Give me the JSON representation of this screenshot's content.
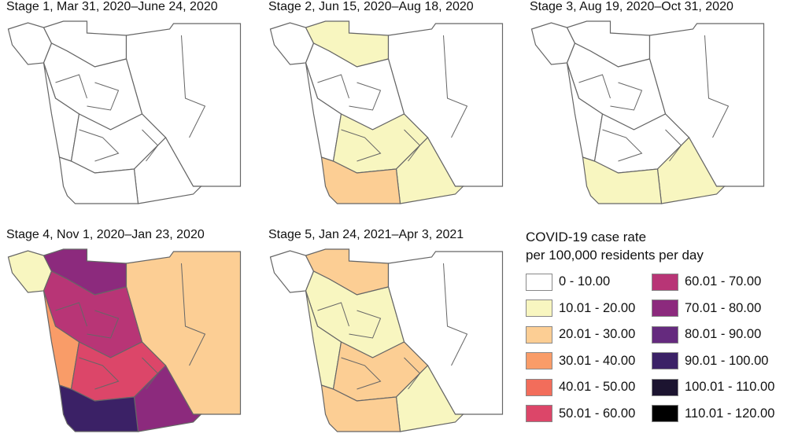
{
  "bins": [
    {
      "label": "0 - 10.00",
      "color": "#ffffff"
    },
    {
      "label": "10.01 - 20.00",
      "color": "#f8f6c0"
    },
    {
      "label": "20.01 - 30.00",
      "color": "#fcce94"
    },
    {
      "label": "30.01 - 40.00",
      "color": "#f99c68"
    },
    {
      "label": "40.01 - 50.00",
      "color": "#f26d5b"
    },
    {
      "label": "50.01 - 60.00",
      "color": "#dc4669"
    },
    {
      "label": "60.01 - 70.00",
      "color": "#b83576"
    },
    {
      "label": "70.01 - 80.00",
      "color": "#8c2a7d"
    },
    {
      "label": "80.01 - 90.00",
      "color": "#652a7e"
    },
    {
      "label": "90.01 - 100.00",
      "color": "#3b2166"
    },
    {
      "label": "100.01 - 110.00",
      "color": "#1c1430"
    },
    {
      "label": "110.01 - 120.00",
      "color": "#000000"
    }
  ],
  "legend": {
    "title_line1": "COVID-19 case rate",
    "title_line2": "per 100,000 residents per day"
  },
  "panels": [
    {
      "title": "Stage 1, Mar 31, 2020–June 24, 2020",
      "region_bins": [
        0,
        0,
        0,
        0,
        0,
        0,
        0,
        0
      ]
    },
    {
      "title": "Stage 2, Jun 15, 2020–Aug 18, 2020",
      "region_bins": [
        0,
        1,
        0,
        0,
        0,
        1,
        1,
        2
      ]
    },
    {
      "title": "Stage 3, Aug 19, 2020–Oct 31, 2020",
      "region_bins": [
        0,
        0,
        0,
        0,
        0,
        0,
        1,
        1
      ]
    },
    {
      "title": "Stage 4, Nov 1, 2020–Jan 23, 2020",
      "region_bins": [
        1,
        7,
        2,
        6,
        3,
        5,
        7,
        9
      ]
    },
    {
      "title": "Stage 5, Jan 24, 2021–Apr 3, 2021",
      "region_bins": [
        0,
        2,
        0,
        1,
        1,
        2,
        1,
        2
      ]
    }
  ]
}
